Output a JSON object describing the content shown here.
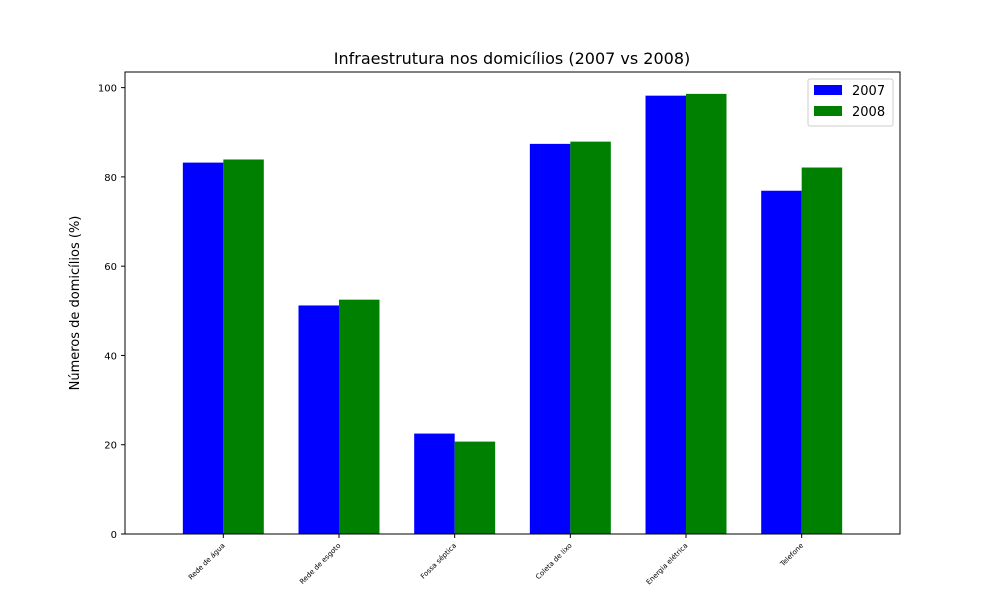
{
  "chart_data": {
    "type": "bar",
    "title": "Infraestrutura nos domicílios (2007 vs 2008)",
    "xlabel": "",
    "ylabel": "Números de domicílios (%)",
    "categories": [
      "Rede de água",
      "Rede de esgoto",
      "Fossa séptica",
      "Coleta de lixo",
      "Energia elétrica",
      "Telefone"
    ],
    "series": [
      {
        "name": "2007",
        "color": "#0000ff",
        "values": [
          83.2,
          51.2,
          22.5,
          87.4,
          98.2,
          76.9
        ]
      },
      {
        "name": "2008",
        "color": "#008000",
        "values": [
          83.9,
          52.5,
          20.7,
          87.9,
          98.6,
          82.1
        ]
      }
    ],
    "ylim": [
      0,
      103.5
    ],
    "yticks": [
      0,
      20,
      40,
      60,
      80,
      100
    ],
    "grid": false,
    "legend_position": "top-right"
  }
}
